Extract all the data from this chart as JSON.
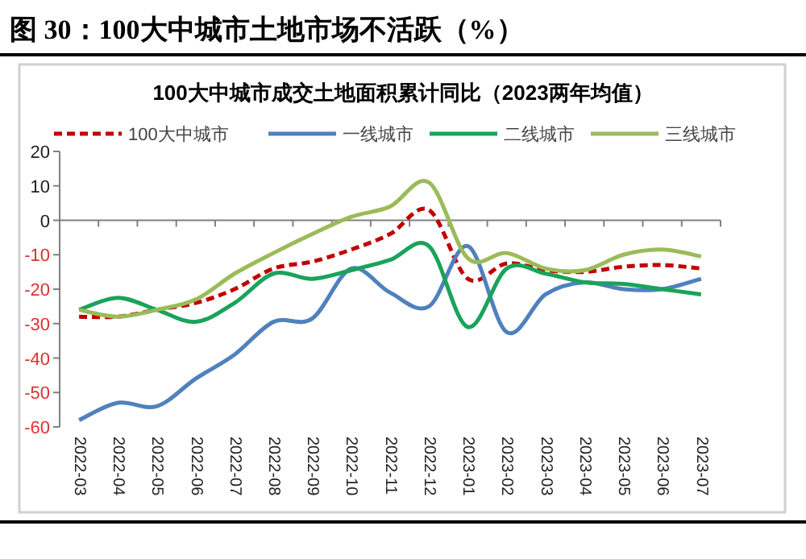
{
  "chart_data": {
    "type": "line",
    "title": "图 30：100大中城市土地市场不活跃（%）",
    "subtitle": "100大中城市成交土地面积累计同比（2023两年均值）",
    "categories": [
      "2022-03",
      "2022-04",
      "2022-05",
      "2022-06",
      "2022-07",
      "2022-08",
      "2022-09",
      "2022-10",
      "2022-11",
      "2022-12",
      "2023-01",
      "2023-02",
      "2023-03",
      "2023-04",
      "2023-05",
      "2023-06",
      "2023-07"
    ],
    "series": [
      {
        "name": "100大中城市",
        "color": "#c00000",
        "line_style": "dashed",
        "values": [
          -28,
          -28,
          -26,
          -24,
          -20,
          -14,
          -12,
          -8.5,
          -4,
          3,
          -17,
          -12.5,
          -14.5,
          -15,
          -13.5,
          -13,
          -14
        ]
      },
      {
        "name": "一线城市",
        "color": "#4f81bd",
        "values": [
          -58,
          -53,
          -54,
          -46,
          -39,
          -29.5,
          -28.5,
          -14,
          -21,
          -25,
          -7.5,
          -32.5,
          -21.5,
          -18,
          -20,
          -20,
          -17
        ]
      },
      {
        "name": "二线城市",
        "color": "#1aa35a",
        "values": [
          -26,
          -22.5,
          -26,
          -29.5,
          -24,
          -15.5,
          -17,
          -14.5,
          -11.5,
          -7.5,
          -31,
          -14,
          -15.5,
          -18,
          -18.5,
          -20,
          -21.5
        ]
      },
      {
        "name": "三线城市",
        "color": "#9bbb59",
        "values": [
          -26,
          -28,
          -26,
          -23,
          -15.5,
          -9.5,
          -4,
          1,
          4,
          11,
          -11,
          -9.5,
          -14,
          -14.5,
          -10,
          -8.5,
          -10.5
        ]
      }
    ],
    "ylim": [
      -60,
      20
    ],
    "yticks": [
      -60,
      -50,
      -40,
      -30,
      -20,
      -10,
      0,
      10,
      20
    ],
    "legend": "top"
  }
}
